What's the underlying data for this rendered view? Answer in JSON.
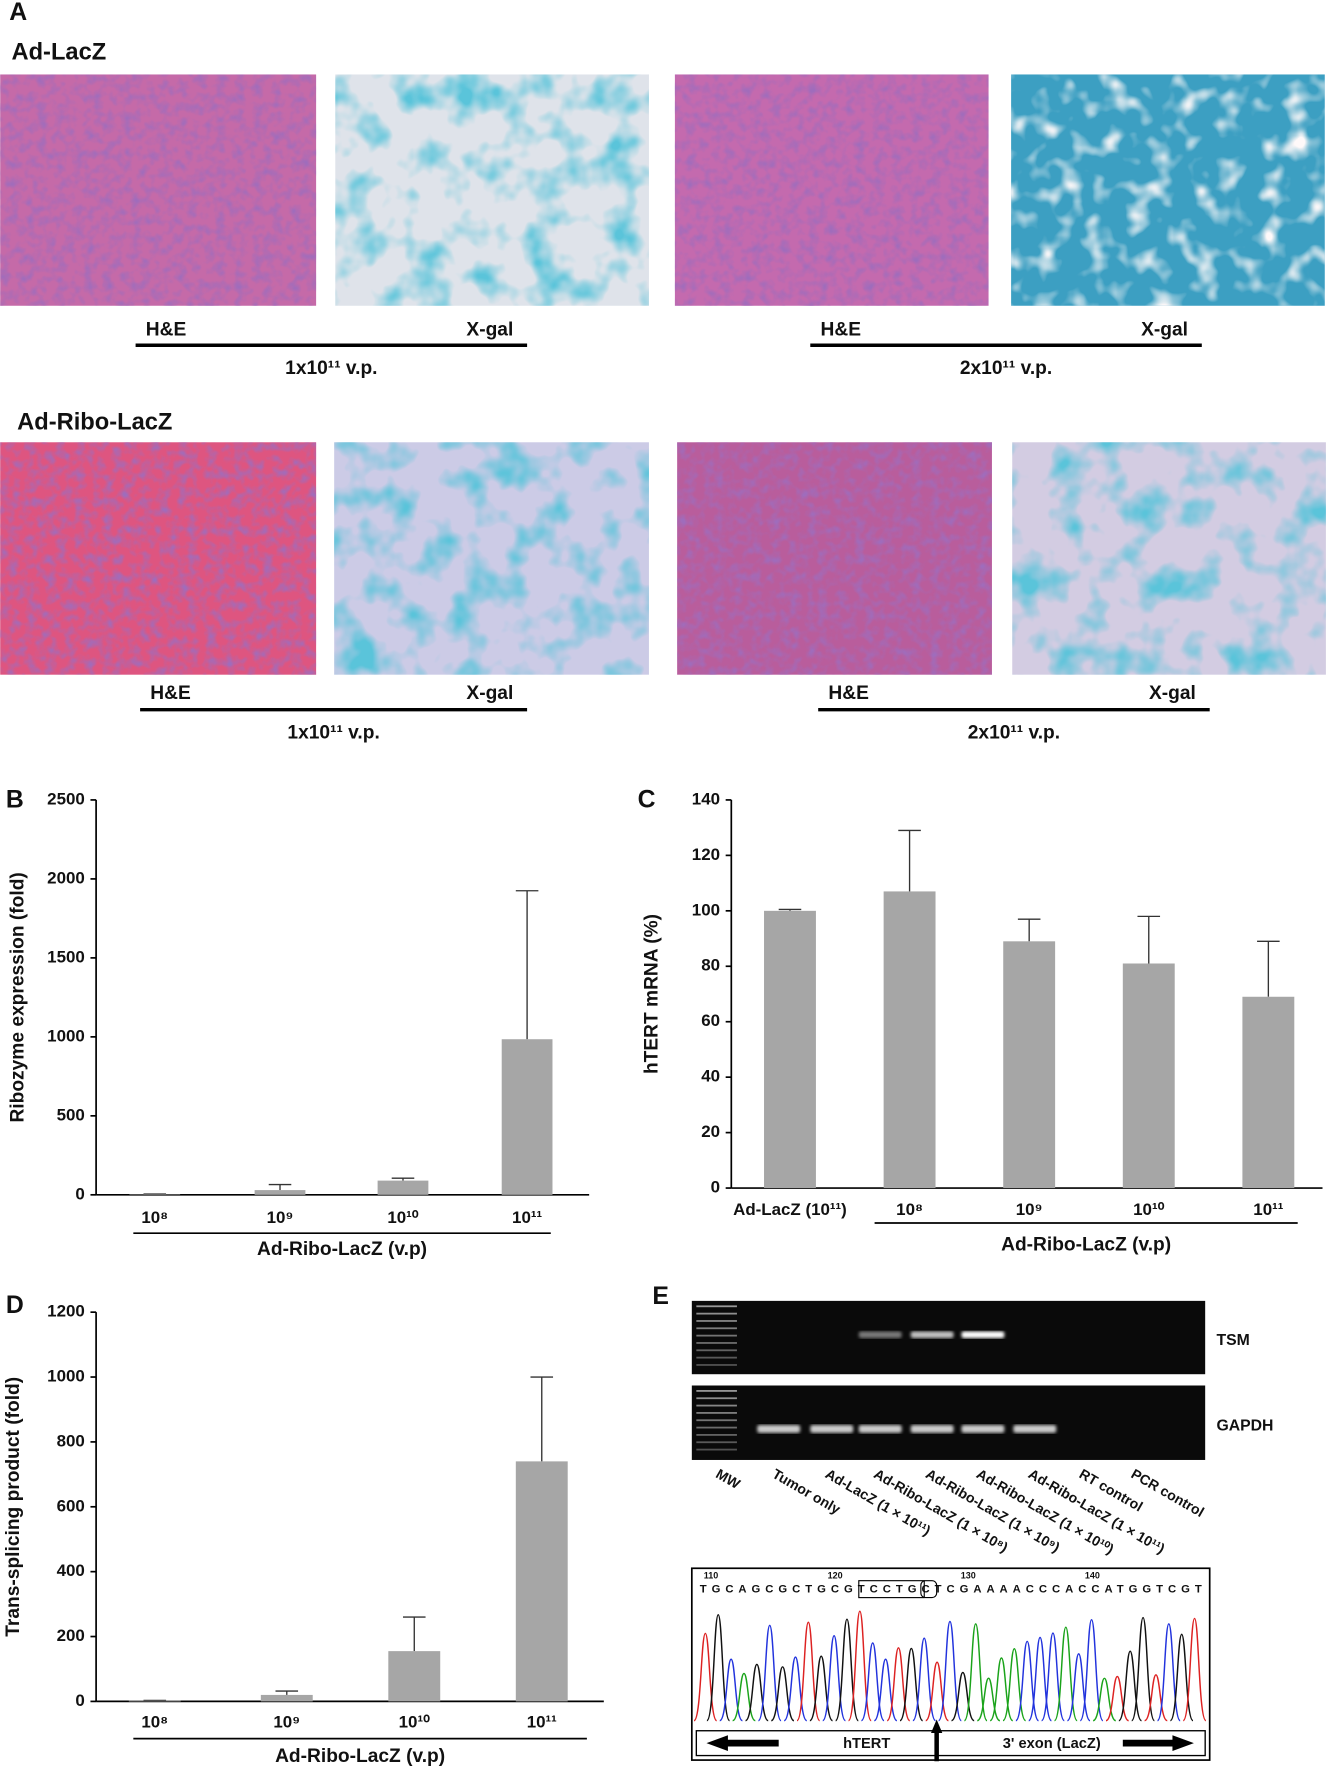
{
  "panel_a": {
    "label": "A",
    "groups": [
      {
        "title": "Ad-LacZ",
        "doses": [
          {
            "dose": "1x10¹¹ v.p.",
            "stains": [
              "H&E",
              "X-gal"
            ]
          },
          {
            "dose": "2x10¹¹ v.p.",
            "stains": [
              "H&E",
              "X-gal"
            ]
          }
        ]
      },
      {
        "title": "Ad-Ribo-LacZ",
        "doses": [
          {
            "dose": "1x10¹¹ v.p.",
            "stains": [
              "H&E",
              "X-gal"
            ]
          },
          {
            "dose": "2x10¹¹ v.p.",
            "stains": [
              "H&E",
              "X-gal"
            ]
          }
        ]
      }
    ]
  },
  "chart_data": [
    {
      "label": "B",
      "type": "bar",
      "ylabel": "Ribozyme expression (fold)",
      "group_label": "Ad-Ribo-LacZ (v.p)",
      "color": "#a6a6a6",
      "categories": [
        "10⁸",
        "10⁹",
        "10¹⁰",
        "10¹¹"
      ],
      "values": [
        3,
        30,
        90,
        985
      ],
      "errors": [
        2,
        35,
        15,
        940
      ],
      "ylim": [
        0,
        2500
      ],
      "yticks": [
        0,
        500,
        1000,
        1500,
        2000,
        2500
      ]
    },
    {
      "label": "C",
      "type": "bar",
      "ylabel": "hTERT mRNA (%)",
      "group_label": "Ad-Ribo-LacZ (v.p)",
      "color": "#a6a6a6",
      "categories": [
        "Ad-LacZ (10¹¹)",
        "10⁸",
        "10⁹",
        "10¹⁰",
        "10¹¹"
      ],
      "values": [
        100,
        107,
        89,
        81,
        69
      ],
      "errors": [
        0.5,
        22,
        8,
        17,
        20
      ],
      "ylim": [
        0,
        140
      ],
      "yticks": [
        0,
        20,
        40,
        60,
        80,
        100,
        120,
        140
      ]
    },
    {
      "label": "D",
      "type": "bar",
      "ylabel": "Trans-splicing product (fold)",
      "group_label": "Ad-Ribo-LacZ (v.p)",
      "color": "#a6a6a6",
      "categories": [
        "10⁸",
        "10⁹",
        "10¹⁰",
        "10¹¹"
      ],
      "values": [
        2,
        20,
        155,
        740
      ],
      "errors": [
        1,
        12,
        105,
        260
      ],
      "ylim": [
        0,
        1200
      ],
      "yticks": [
        0,
        200,
        400,
        600,
        800,
        1000,
        1200
      ]
    }
  ],
  "panel_e": {
    "label": "E",
    "gel_labels": [
      "TSM",
      "GAPDH"
    ],
    "lanes": [
      "MW",
      "Tumor only",
      "Ad-LacZ (1 × 10¹¹)",
      "Ad-Ribo-LacZ (1 × 10⁸)",
      "Ad-Ribo-LacZ (1 × 10⁹)",
      "Ad-Ribo-LacZ (1 × 10¹⁰)",
      "Ad-Ribo-LacZ (1 × 10¹¹)",
      "RT control",
      "PCR control"
    ],
    "sequence": "TGCAGCGCTGCGTCCTGCTCGAAAACCCACCATGGTCGT",
    "positions": [
      "110",
      "120",
      "130",
      "140"
    ],
    "regions": [
      "hTERT",
      "3' exon (LacZ)"
    ]
  }
}
